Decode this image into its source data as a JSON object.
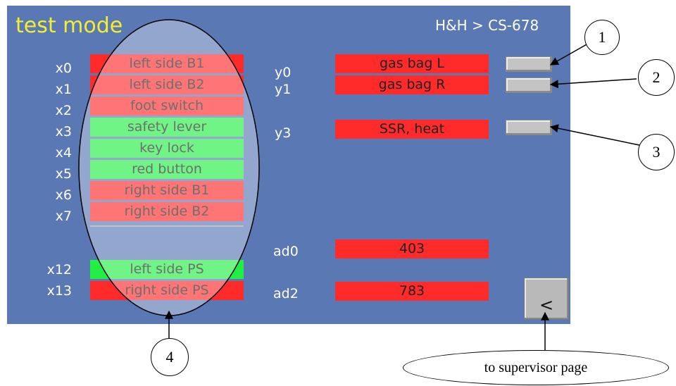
{
  "screen": {
    "title": "test mode",
    "brand": "H&H > CS-678",
    "back_label": "<"
  },
  "inputs": [
    {
      "label": "x0",
      "text": "left side B1",
      "state": "red"
    },
    {
      "label": "x1",
      "text": "left side B2",
      "state": "red"
    },
    {
      "label": "x2",
      "text": "foot switch",
      "state": "red"
    },
    {
      "label": "x3",
      "text": "safety lever",
      "state": "green"
    },
    {
      "label": "x4",
      "text": "key lock",
      "state": "green"
    },
    {
      "label": "x5",
      "text": "red button",
      "state": "green"
    },
    {
      "label": "x6",
      "text": "right side B1",
      "state": "red"
    },
    {
      "label": "x7",
      "text": "right side B2",
      "state": "red"
    },
    {
      "label": "x12",
      "text": "left side PS",
      "state": "green"
    },
    {
      "label": "x13",
      "text": "right side PS",
      "state": "red"
    }
  ],
  "outputs": [
    {
      "label": "y0",
      "text": "gas bag L",
      "state": "red"
    },
    {
      "label": "y1",
      "text": "gas bag R",
      "state": "red"
    },
    {
      "label": "y3",
      "text": "SSR, heat",
      "state": "red"
    }
  ],
  "analog": [
    {
      "label": "ad0",
      "value": "403",
      "state": "red"
    },
    {
      "label": "ad2",
      "value": "783",
      "state": "red"
    }
  ],
  "callouts": {
    "c1": "1",
    "c2": "2",
    "c3": "3",
    "c4": "4",
    "supervisor": "to supervisor page"
  },
  "colors": {
    "screen_bg": "#5a78b4",
    "title": "#f2ee30",
    "active": "#22ee44",
    "inactive": "#ff2a2a"
  }
}
